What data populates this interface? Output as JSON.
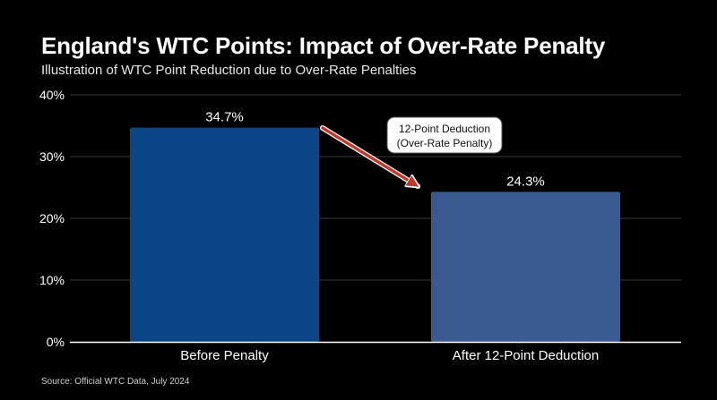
{
  "chart_data": {
    "type": "bar",
    "title": "England's WTC Points: Impact of Over-Rate Penalty",
    "subtitle": "Illustration of WTC Point Reduction due to Over-Rate Penalties",
    "categories": [
      "Before Penalty",
      "After 12-Point Deduction"
    ],
    "values": [
      34.7,
      24.3
    ],
    "value_labels": [
      "34.7%",
      "24.3%"
    ],
    "bar_colors": [
      "#0b4585",
      "#3a5a91"
    ],
    "ylim": [
      0,
      40
    ],
    "yticks": [
      0,
      10,
      20,
      30,
      40
    ],
    "ytick_labels": [
      "0%",
      "10%",
      "20%",
      "30%",
      "40%"
    ],
    "grid": true,
    "annotation": {
      "lines": [
        "12-Point Deduction",
        "(Over-Rate Penalty)"
      ],
      "arrow_from": "Before Penalty",
      "arrow_to": "After 12-Point Deduction"
    },
    "source": "Source: Official WTC Data, July 2024"
  },
  "colors": {
    "background": "#000000",
    "text": "#ffffff",
    "grid": "#3a3a3a",
    "arrow": "#c0392b",
    "annotation_box": "#ffffff"
  }
}
